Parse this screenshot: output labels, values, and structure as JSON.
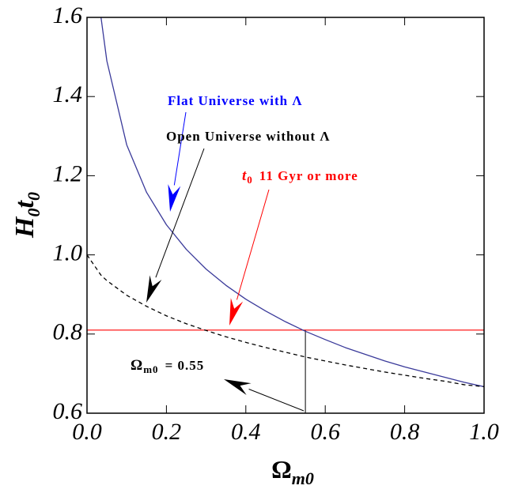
{
  "chart_data": {
    "type": "line",
    "x": [
      0,
      0.035,
      0.05,
      0.1,
      0.15,
      0.2,
      0.25,
      0.3,
      0.35,
      0.4,
      0.45,
      0.5,
      0.55,
      0.6,
      0.65,
      0.7,
      0.75,
      0.8,
      0.85,
      0.9,
      0.95,
      1.0
    ],
    "series": [
      {
        "color": "#3a3a9a",
        "dash": false,
        "values": [
          null,
          1.602,
          1.49,
          1.278,
          1.158,
          1.076,
          1.014,
          0.964,
          0.923,
          0.888,
          0.858,
          0.831,
          0.807,
          0.786,
          0.766,
          0.749,
          0.732,
          0.717,
          0.704,
          0.691,
          0.678,
          0.667
        ]
      },
      {
        "color": "#000000",
        "dash": true,
        "values": [
          1.0,
          0.949,
          0.935,
          0.898,
          0.87,
          0.846,
          0.826,
          0.809,
          0.793,
          0.779,
          0.766,
          0.754,
          0.742,
          0.732,
          0.722,
          0.713,
          0.704,
          0.696,
          0.688,
          0.681,
          0.672,
          0.667
        ]
      }
    ],
    "xlim": [
      0,
      1.0
    ],
    "ylim": [
      0.6,
      1.6
    ],
    "xticks": [
      {
        "value": 0,
        "label": "0.0"
      },
      0.2,
      0.4,
      0.6,
      0.8,
      {
        "value": 1.0,
        "label": "1.0"
      }
    ],
    "yticks": [
      0.6,
      0.8,
      {
        "value": 1.0,
        "label": "1.0"
      },
      1.2,
      1.4,
      1.6
    ],
    "xlabel": {
      "main": "Ω",
      "sub": "m0"
    },
    "ylabel": {
      "parts": [
        "H",
        "0",
        "t",
        "0"
      ]
    },
    "hline": {
      "y": 0.81,
      "color": "#ff0000"
    },
    "vline": {
      "x": 0.55,
      "color": "#000000"
    },
    "annotations": [
      {
        "text": "Flat Universe with Λ",
        "color": "#0000ff"
      },
      {
        "text": "Open Universe without Λ",
        "color": "#000000"
      },
      {
        "pre": "t",
        "sub": "0",
        "text": "11 Gyr or more",
        "color": "#ff0000"
      },
      {
        "pre": "Ω",
        "sub": "m0",
        "text": "= 0.55",
        "color": "#000000"
      }
    ]
  }
}
